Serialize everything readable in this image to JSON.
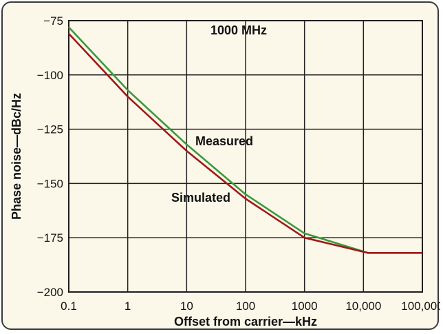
{
  "chart_data": {
    "type": "line",
    "title": "",
    "xlabel": "Offset from carrier—kHz",
    "ylabel": "Phase noise—dBc/Hz",
    "x_scale": "log",
    "xlim": [
      0.1,
      100000
    ],
    "ylim": [
      -200,
      -75
    ],
    "grid": true,
    "x_ticks": [
      {
        "value": 0.1,
        "label": "0.1"
      },
      {
        "value": 1,
        "label": "1"
      },
      {
        "value": 10,
        "label": "10"
      },
      {
        "value": 100,
        "label": "100"
      },
      {
        "value": 1000,
        "label": "1000"
      },
      {
        "value": 10000,
        "label": "10,000"
      },
      {
        "value": 100000,
        "label": "100,000"
      }
    ],
    "y_ticks": [
      {
        "value": -75,
        "label": "−75"
      },
      {
        "value": -100,
        "label": "−100"
      },
      {
        "value": -125,
        "label": "−125"
      },
      {
        "value": -150,
        "label": "−150"
      },
      {
        "value": -175,
        "label": "−175"
      },
      {
        "value": -200,
        "label": "−200"
      }
    ],
    "series": [
      {
        "name": "Measured",
        "color": "#3a9a3a",
        "x": [
          0.1,
          1,
          10,
          100,
          1000,
          12000
        ],
        "y": [
          -78,
          -107,
          -132,
          -155,
          -173,
          -182
        ]
      },
      {
        "name": "Simulated",
        "color": "#a01818",
        "x": [
          0.1,
          1,
          10,
          100,
          1000,
          12000,
          100000
        ],
        "y": [
          -81,
          -110,
          -135,
          -157,
          -175,
          -182,
          -182
        ]
      }
    ],
    "annotations": [
      {
        "text": "1000 MHz"
      }
    ]
  }
}
